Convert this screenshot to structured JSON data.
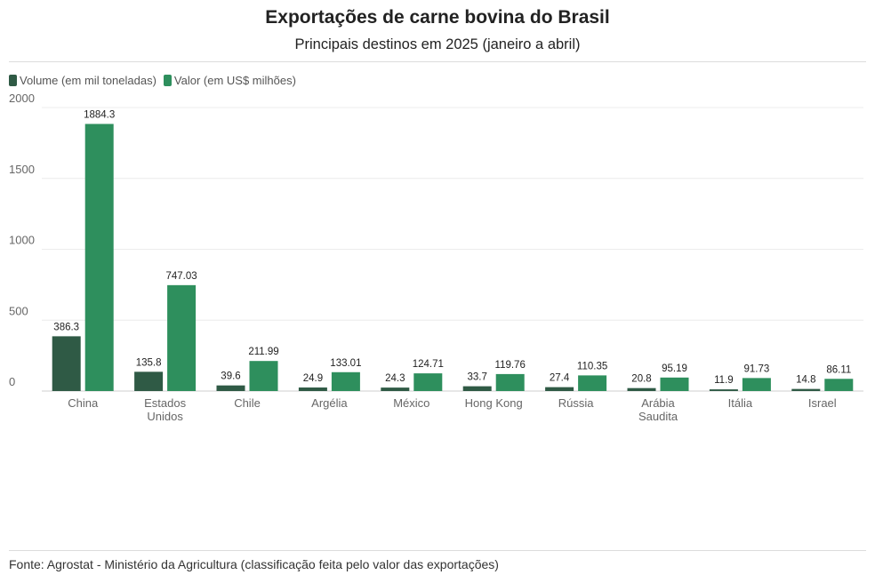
{
  "chart_data": {
    "type": "bar",
    "title": "Exportações de carne bovina do Brasil",
    "subtitle": "Principais destinos em 2025 (janeiro a abril)",
    "source": "Fonte: Agrostat - Ministério da Agricultura (classificação feita pelo valor das exportações)",
    "categories": [
      [
        "China"
      ],
      [
        "Estados",
        "Unidos"
      ],
      [
        "Chile"
      ],
      [
        "Argélia"
      ],
      [
        "México"
      ],
      [
        "Hong Kong"
      ],
      [
        "Rússia"
      ],
      [
        "Arábia",
        "Saudita"
      ],
      [
        "Itália"
      ],
      [
        "Israel"
      ]
    ],
    "series": [
      {
        "name": "Volume (em mil toneladas)",
        "color": "#2f5a45",
        "values": [
          386.3,
          135.8,
          39.6,
          24.9,
          24.3,
          33.7,
          27.4,
          20.8,
          11.9,
          14.8
        ],
        "labels": [
          "386.3",
          "135.8",
          "39.6",
          "24.9",
          "24.3",
          "33.7",
          "27.4",
          "20.8",
          "11.9",
          "14.8"
        ]
      },
      {
        "name": "Valor (em US$ milhões)",
        "color": "#2e8f5d",
        "values": [
          1884.3,
          747.03,
          211.99,
          133.01,
          124.71,
          119.76,
          110.35,
          95.19,
          91.73,
          86.11
        ],
        "labels": [
          "1884.3",
          "747.03",
          "211.99",
          "133.01",
          "124.71",
          "119.76",
          "110.35",
          "95.19",
          "91.73",
          "86.11"
        ]
      }
    ],
    "yticks": [
      "0",
      "500",
      "1000",
      "1500",
      "2000"
    ],
    "ylim": [
      0,
      2000
    ],
    "grid": true,
    "legend": "top-left"
  }
}
